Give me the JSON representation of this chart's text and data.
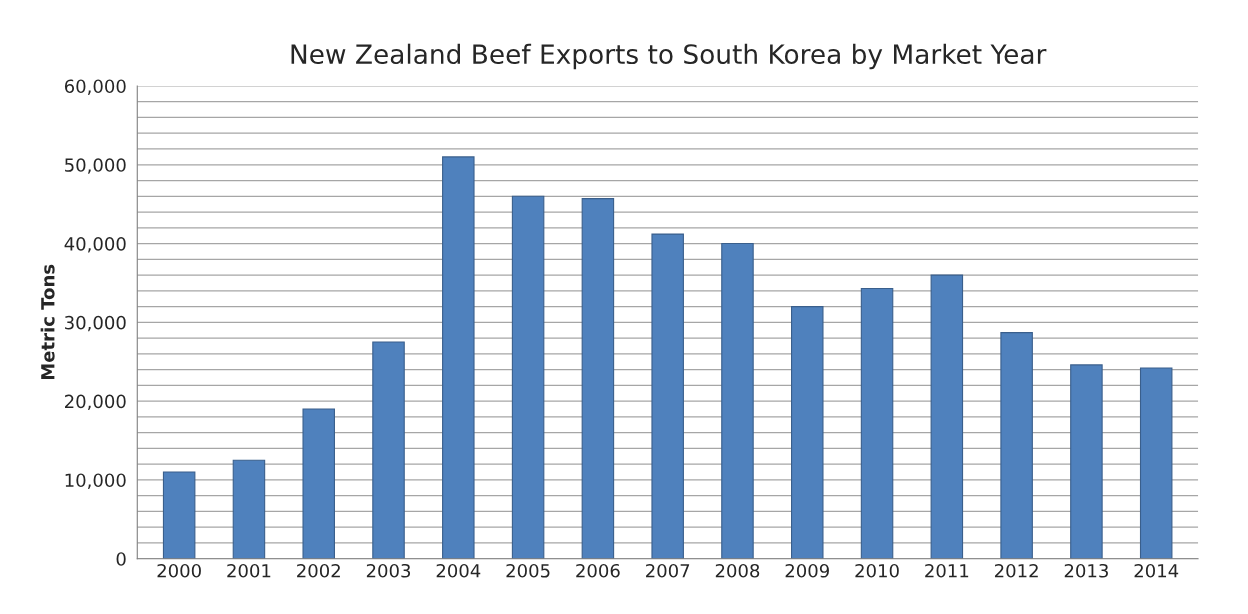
{
  "chart_data": {
    "type": "bar",
    "title": "New Zealand Beef Exports to South Korea by Market Year",
    "ylabel": "Metric Tons",
    "categories": [
      "2000",
      "2001",
      "2002",
      "2003",
      "2004",
      "2005",
      "2006",
      "2007",
      "2008",
      "2009",
      "2010",
      "2011",
      "2012",
      "2013",
      "2014"
    ],
    "values": [
      11000,
      12500,
      19000,
      27500,
      51000,
      46000,
      45700,
      41200,
      40000,
      32000,
      34300,
      36000,
      28700,
      24600,
      24200
    ],
    "color": "#4f81bd",
    "ylim": [
      0,
      60000
    ],
    "yticks": [
      {
        "value": 0,
        "label": "0"
      },
      {
        "value": 2000,
        "label": null
      },
      {
        "value": 4000,
        "label": null
      },
      {
        "value": 6000,
        "label": null
      },
      {
        "value": 8000,
        "label": null
      },
      {
        "value": 10000,
        "label": "10,000"
      },
      {
        "value": 12000,
        "label": null
      },
      {
        "value": 14000,
        "label": null
      },
      {
        "value": 16000,
        "label": null
      },
      {
        "value": 18000,
        "label": null
      },
      {
        "value": 20000,
        "label": "20,000"
      },
      {
        "value": 22000,
        "label": null
      },
      {
        "value": 24000,
        "label": null
      },
      {
        "value": 26000,
        "label": null
      },
      {
        "value": 28000,
        "label": null
      },
      {
        "value": 30000,
        "label": "30,000"
      },
      {
        "value": 32000,
        "label": null
      },
      {
        "value": 34000,
        "label": null
      },
      {
        "value": 36000,
        "label": null
      },
      {
        "value": 38000,
        "label": null
      },
      {
        "value": 40000,
        "label": "40,000"
      },
      {
        "value": 42000,
        "label": null
      },
      {
        "value": 44000,
        "label": null
      },
      {
        "value": 46000,
        "label": null
      },
      {
        "value": 48000,
        "label": null
      },
      {
        "value": 50000,
        "label": "50,000"
      },
      {
        "value": 52000,
        "label": null
      },
      {
        "value": 54000,
        "label": null
      },
      {
        "value": 56000,
        "label": null
      },
      {
        "value": 58000,
        "label": null
      },
      {
        "value": 60000,
        "label": "60,000"
      }
    ],
    "grid": "y"
  }
}
